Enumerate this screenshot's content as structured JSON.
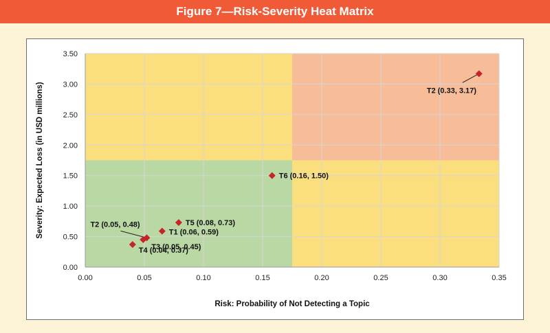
{
  "figure": {
    "title": "Figure 7—Risk-Severity Heat Matrix"
  },
  "colors": {
    "banner": "#f15a36",
    "zone_low": "#b9d8a4",
    "zone_medium": "#fbdf7f",
    "zone_high": "#f7bd98",
    "marker": "#c8222a",
    "grid": "#d6d6d6"
  },
  "chart_data": {
    "type": "scatter",
    "title": "",
    "xlabel": "Risk: Probability of Not Detecting a Topic",
    "ylabel": "Severity: Expected Loss (in USD millions)",
    "xlim": [
      0,
      0.35
    ],
    "ylim": [
      0,
      3.5
    ],
    "x_ticks": [
      "0.00",
      "0.05",
      "0.10",
      "0.15",
      "0.20",
      "0.25",
      "0.30",
      "0.35"
    ],
    "y_ticks": [
      "0.00",
      "0.50",
      "1.00",
      "1.50",
      "2.00",
      "2.50",
      "3.00",
      "3.50"
    ],
    "grid": true,
    "zones": [
      {
        "x": [
          0,
          0.175
        ],
        "y": [
          0,
          1.75
        ],
        "level": "low"
      },
      {
        "x": [
          0.175,
          0.35
        ],
        "y": [
          0,
          1.75
        ],
        "level": "medium"
      },
      {
        "x": [
          0,
          0.175
        ],
        "y": [
          1.75,
          3.5
        ],
        "level": "medium"
      },
      {
        "x": [
          0.175,
          0.35
        ],
        "y": [
          1.75,
          3.5
        ],
        "level": "high"
      }
    ],
    "points": [
      {
        "id": "T1",
        "x": 0.065,
        "y": 0.59,
        "label": "T1 (0.06, 0.59)"
      },
      {
        "id": "T2-low",
        "x": 0.052,
        "y": 0.48,
        "label": "T2 (0.05, 0.48)"
      },
      {
        "id": "T3",
        "x": 0.049,
        "y": 0.45,
        "label": "T3 (0.05, 0.45)"
      },
      {
        "id": "T4",
        "x": 0.04,
        "y": 0.37,
        "label": "T4 (0.04, 0.37)"
      },
      {
        "id": "T5",
        "x": 0.079,
        "y": 0.73,
        "label": "T5 (0.08, 0.73)"
      },
      {
        "id": "T6",
        "x": 0.158,
        "y": 1.5,
        "label": "T6 (0.16, 1.50)"
      },
      {
        "id": "T2-high",
        "x": 0.333,
        "y": 3.17,
        "label": "T2 (0.33, 3.17)"
      }
    ]
  }
}
